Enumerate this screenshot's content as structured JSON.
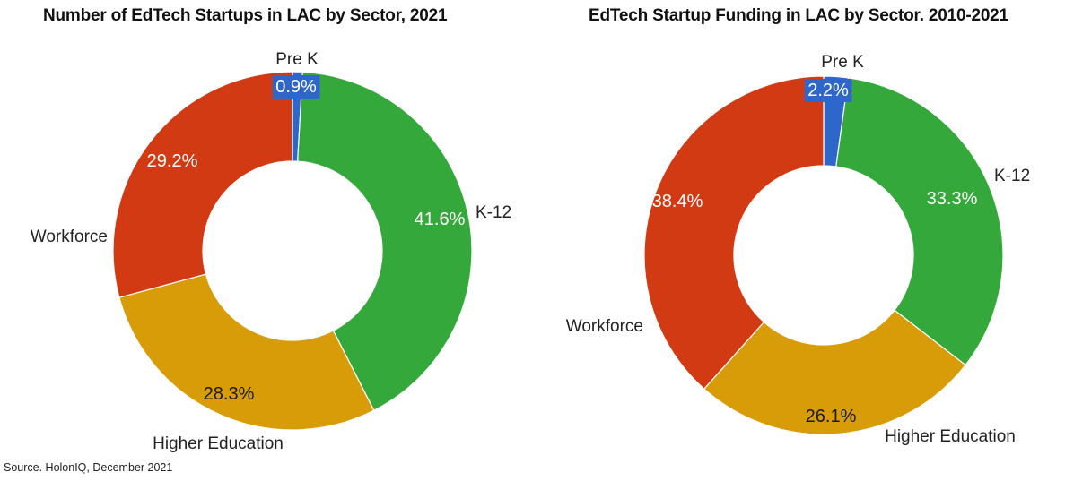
{
  "source_note": "Source. HolonIQ, December 2021",
  "colors": {
    "pre_k": "#2f66c9",
    "k12": "#34a83a",
    "higher_education": "#d89c08",
    "workforce": "#d23a14"
  },
  "chart_data": [
    {
      "type": "pie",
      "variant": "donut",
      "title": "Number of EdTech Startups in LAC by Sector, 2021",
      "categories": [
        "Pre K",
        "K-12",
        "Higher Education",
        "Workforce"
      ],
      "values": [
        0.9,
        41.6,
        28.3,
        29.2
      ],
      "value_labels": [
        "0.9%",
        "41.6%",
        "28.3%",
        "29.2%"
      ],
      "legend": "none"
    },
    {
      "type": "pie",
      "variant": "donut",
      "title": "EdTech Startup Funding in LAC by Sector. 2010-2021",
      "categories": [
        "Pre K",
        "K-12",
        "Higher Education",
        "Workforce"
      ],
      "values": [
        2.2,
        33.3,
        26.1,
        38.4
      ],
      "value_labels": [
        "2.2%",
        "33.3%",
        "26.1%",
        "38.4%"
      ],
      "legend": "none"
    }
  ]
}
